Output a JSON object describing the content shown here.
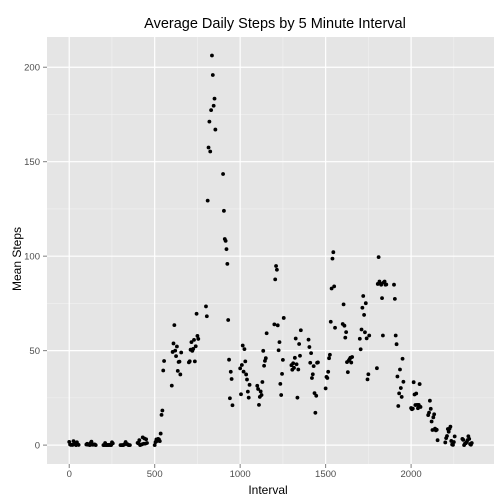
{
  "chart_data": {
    "type": "scatter",
    "title": "Average Daily Steps by 5 Minute Interval",
    "xlabel": "Interval",
    "ylabel": "Mean Steps",
    "xlim": [
      -130,
      2485
    ],
    "ylim": [
      -10,
      216
    ],
    "xticks": [
      0,
      500,
      1000,
      1500,
      2000
    ],
    "yticks": [
      0,
      50,
      100,
      150,
      200
    ],
    "grid": true,
    "colors": {
      "panel_background": "#e5e5e5",
      "major_grid": "#ffffff",
      "minor_grid": "#f2f2f2",
      "points": "#000000"
    },
    "points": [
      [
        0,
        1.7
      ],
      [
        5,
        0.3
      ],
      [
        10,
        0.1
      ],
      [
        15,
        0.2
      ],
      [
        20,
        0.1
      ],
      [
        25,
        2.1
      ],
      [
        30,
        0.5
      ],
      [
        35,
        0.9
      ],
      [
        40,
        0.0
      ],
      [
        45,
        1.5
      ],
      [
        50,
        0.3
      ],
      [
        55,
        0.1
      ],
      [
        100,
        0.3
      ],
      [
        105,
        0.7
      ],
      [
        110,
        0.2
      ],
      [
        115,
        0.3
      ],
      [
        120,
        0.0
      ],
      [
        125,
        1.1
      ],
      [
        130,
        1.8
      ],
      [
        135,
        0.2
      ],
      [
        140,
        0.2
      ],
      [
        145,
        0.4
      ],
      [
        150,
        0.3
      ],
      [
        155,
        0.0
      ],
      [
        200,
        0.0
      ],
      [
        205,
        0.0
      ],
      [
        210,
        1.1
      ],
      [
        215,
        0.0
      ],
      [
        220,
        0.0
      ],
      [
        225,
        0.1
      ],
      [
        230,
        0.0
      ],
      [
        235,
        0.2
      ],
      [
        240,
        0.0
      ],
      [
        245,
        0.0
      ],
      [
        250,
        1.5
      ],
      [
        255,
        0.9
      ],
      [
        300,
        0.0
      ],
      [
        305,
        0.0
      ],
      [
        310,
        0.0
      ],
      [
        315,
        0.0
      ],
      [
        320,
        0.2
      ],
      [
        325,
        0.6
      ],
      [
        330,
        1.6
      ],
      [
        335,
        0.6
      ],
      [
        340,
        0.5
      ],
      [
        345,
        0.1
      ],
      [
        350,
        0.0
      ],
      [
        355,
        0.0
      ],
      [
        400,
        1.2
      ],
      [
        405,
        0.9
      ],
      [
        410,
        2.6
      ],
      [
        415,
        0.0
      ],
      [
        420,
        0.3
      ],
      [
        425,
        0.4
      ],
      [
        430,
        4.1
      ],
      [
        435,
        0.7
      ],
      [
        440,
        3.5
      ],
      [
        445,
        0.8
      ],
      [
        450,
        3.1
      ],
      [
        455,
        1.1
      ],
      [
        500,
        0.0
      ],
      [
        505,
        1.6
      ],
      [
        510,
        3.0
      ],
      [
        515,
        2.2
      ],
      [
        520,
        3.3
      ],
      [
        525,
        3.0
      ],
      [
        530,
        2.1
      ],
      [
        535,
        6.1
      ],
      [
        540,
        16.0
      ],
      [
        545,
        18.3
      ],
      [
        550,
        39.5
      ],
      [
        555,
        44.5
      ],
      [
        600,
        31.5
      ],
      [
        605,
        49.3
      ],
      [
        610,
        53.8
      ],
      [
        615,
        63.5
      ],
      [
        620,
        50.0
      ],
      [
        625,
        47.1
      ],
      [
        630,
        52.2
      ],
      [
        635,
        39.3
      ],
      [
        640,
        44.0
      ],
      [
        645,
        44.2
      ],
      [
        650,
        37.4
      ],
      [
        655,
        49.0
      ],
      [
        700,
        43.8
      ],
      [
        705,
        44.4
      ],
      [
        710,
        50.5
      ],
      [
        715,
        54.5
      ],
      [
        720,
        49.9
      ],
      [
        725,
        50.9
      ],
      [
        730,
        55.7
      ],
      [
        735,
        44.3
      ],
      [
        740,
        52.3
      ],
      [
        745,
        69.5
      ],
      [
        750,
        57.8
      ],
      [
        755,
        56.2
      ],
      [
        800,
        73.4
      ],
      [
        805,
        68.2
      ],
      [
        810,
        129.4
      ],
      [
        815,
        157.5
      ],
      [
        820,
        171.2
      ],
      [
        825,
        155.4
      ],
      [
        830,
        177.3
      ],
      [
        835,
        206.2
      ],
      [
        840,
        195.9
      ],
      [
        845,
        179.6
      ],
      [
        850,
        183.4
      ],
      [
        855,
        167.0
      ],
      [
        900,
        143.5
      ],
      [
        905,
        124.0
      ],
      [
        910,
        109.1
      ],
      [
        915,
        108.1
      ],
      [
        920,
        103.7
      ],
      [
        925,
        95.9
      ],
      [
        930,
        66.2
      ],
      [
        935,
        45.2
      ],
      [
        940,
        24.8
      ],
      [
        945,
        38.8
      ],
      [
        950,
        35.0
      ],
      [
        955,
        21.1
      ],
      [
        1000,
        40.6
      ],
      [
        1005,
        26.9
      ],
      [
        1010,
        42.4
      ],
      [
        1015,
        52.7
      ],
      [
        1020,
        38.9
      ],
      [
        1025,
        50.8
      ],
      [
        1030,
        44.3
      ],
      [
        1035,
        37.4
      ],
      [
        1040,
        34.7
      ],
      [
        1045,
        28.3
      ],
      [
        1050,
        25.1
      ],
      [
        1055,
        31.9
      ],
      [
        1100,
        31.4
      ],
      [
        1105,
        29.7
      ],
      [
        1110,
        21.3
      ],
      [
        1115,
        25.5
      ],
      [
        1120,
        28.4
      ],
      [
        1125,
        26.5
      ],
      [
        1130,
        33.4
      ],
      [
        1135,
        49.9
      ],
      [
        1140,
        42.0
      ],
      [
        1145,
        44.6
      ],
      [
        1150,
        46.0
      ],
      [
        1155,
        59.2
      ],
      [
        1200,
        63.9
      ],
      [
        1205,
        87.7
      ],
      [
        1210,
        94.8
      ],
      [
        1215,
        92.8
      ],
      [
        1220,
        63.4
      ],
      [
        1225,
        50.2
      ],
      [
        1230,
        54.5
      ],
      [
        1235,
        32.4
      ],
      [
        1240,
        26.5
      ],
      [
        1245,
        37.7
      ],
      [
        1250,
        45.1
      ],
      [
        1255,
        67.3
      ],
      [
        1300,
        42.3
      ],
      [
        1305,
        39.9
      ],
      [
        1310,
        43.3
      ],
      [
        1315,
        40.9
      ],
      [
        1320,
        46.2
      ],
      [
        1325,
        56.4
      ],
      [
        1330,
        42.8
      ],
      [
        1335,
        25.1
      ],
      [
        1340,
        40.0
      ],
      [
        1345,
        53.5
      ],
      [
        1350,
        47.3
      ],
      [
        1355,
        60.8
      ],
      [
        1400,
        55.8
      ],
      [
        1405,
        51.9
      ],
      [
        1410,
        43.6
      ],
      [
        1415,
        48.7
      ],
      [
        1420,
        35.5
      ],
      [
        1425,
        37.5
      ],
      [
        1430,
        41.8
      ],
      [
        1435,
        27.5
      ],
      [
        1440,
        17.1
      ],
      [
        1445,
        26.1
      ],
      [
        1450,
        43.6
      ],
      [
        1455,
        43.8
      ],
      [
        1500,
        30.0
      ],
      [
        1505,
        36.1
      ],
      [
        1510,
        35.5
      ],
      [
        1515,
        38.8
      ],
      [
        1520,
        46.0
      ],
      [
        1525,
        47.8
      ],
      [
        1530,
        65.3
      ],
      [
        1535,
        82.9
      ],
      [
        1540,
        98.7
      ],
      [
        1545,
        102.1
      ],
      [
        1550,
        84.0
      ],
      [
        1555,
        62.1
      ],
      [
        1600,
        64.1
      ],
      [
        1605,
        74.5
      ],
      [
        1610,
        63.2
      ],
      [
        1615,
        56.9
      ],
      [
        1620,
        59.8
      ],
      [
        1625,
        43.9
      ],
      [
        1630,
        38.6
      ],
      [
        1635,
        44.7
      ],
      [
        1640,
        45.5
      ],
      [
        1645,
        46.2
      ],
      [
        1650,
        43.7
      ],
      [
        1655,
        46.6
      ],
      [
        1700,
        56.3
      ],
      [
        1705,
        50.7
      ],
      [
        1710,
        61.2
      ],
      [
        1715,
        72.7
      ],
      [
        1720,
        78.9
      ],
      [
        1725,
        68.9
      ],
      [
        1730,
        59.7
      ],
      [
        1735,
        75.1
      ],
      [
        1740,
        56.5
      ],
      [
        1745,
        34.8
      ],
      [
        1750,
        37.5
      ],
      [
        1755,
        58.0
      ],
      [
        1800,
        40.7
      ],
      [
        1805,
        85.3
      ],
      [
        1810,
        99.5
      ],
      [
        1815,
        86.6
      ],
      [
        1820,
        85.6
      ],
      [
        1825,
        84.9
      ],
      [
        1830,
        77.8
      ],
      [
        1835,
        58.0
      ],
      [
        1840,
        86.1
      ],
      [
        1845,
        86.6
      ],
      [
        1850,
        84.9
      ],
      [
        1855,
        85.0
      ],
      [
        1900,
        84.9
      ],
      [
        1905,
        77.4
      ],
      [
        1910,
        58.0
      ],
      [
        1915,
        53.4
      ],
      [
        1920,
        36.3
      ],
      [
        1925,
        20.7
      ],
      [
        1930,
        27.4
      ],
      [
        1935,
        40.0
      ],
      [
        1940,
        30.2
      ],
      [
        1945,
        25.5
      ],
      [
        1950,
        45.7
      ],
      [
        1955,
        33.5
      ],
      [
        2000,
        19.6
      ],
      [
        2005,
        19.0
      ],
      [
        2010,
        19.3
      ],
      [
        2015,
        33.3
      ],
      [
        2020,
        26.8
      ],
      [
        2025,
        21.2
      ],
      [
        2030,
        27.3
      ],
      [
        2035,
        21.3
      ],
      [
        2040,
        19.5
      ],
      [
        2045,
        21.3
      ],
      [
        2050,
        32.3
      ],
      [
        2055,
        20.2
      ],
      [
        2100,
        15.9
      ],
      [
        2105,
        17.2
      ],
      [
        2110,
        23.5
      ],
      [
        2115,
        19.2
      ],
      [
        2120,
        12.5
      ],
      [
        2125,
        8.0
      ],
      [
        2130,
        14.7
      ],
      [
        2135,
        16.3
      ],
      [
        2140,
        8.7
      ],
      [
        2145,
        7.8
      ],
      [
        2150,
        8.1
      ],
      [
        2155,
        2.6
      ],
      [
        2200,
        1.4
      ],
      [
        2205,
        3.7
      ],
      [
        2210,
        4.8
      ],
      [
        2215,
        8.5
      ],
      [
        2220,
        7.1
      ],
      [
        2225,
        8.7
      ],
      [
        2230,
        9.8
      ],
      [
        2235,
        2.2
      ],
      [
        2240,
        0.3
      ],
      [
        2245,
        0.1
      ],
      [
        2250,
        1.6
      ],
      [
        2255,
        4.6
      ],
      [
        2300,
        3.3
      ],
      [
        2305,
        2.8
      ],
      [
        2310,
        0.0
      ],
      [
        2315,
        0.8
      ],
      [
        2320,
        1.0
      ],
      [
        2325,
        1.6
      ],
      [
        2330,
        2.6
      ],
      [
        2335,
        4.7
      ],
      [
        2340,
        3.3
      ],
      [
        2345,
        0.6
      ],
      [
        2350,
        0.2
      ],
      [
        2355,
        1.1
      ]
    ]
  }
}
